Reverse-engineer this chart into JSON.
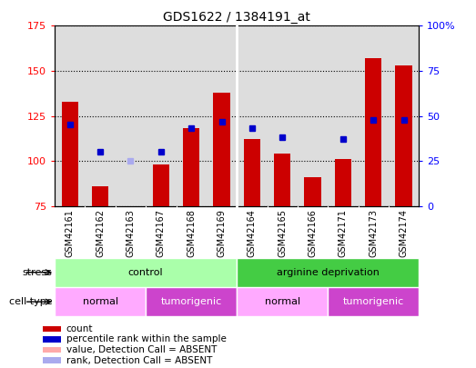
{
  "title": "GDS1622 / 1384191_at",
  "samples": [
    "GSM42161",
    "GSM42162",
    "GSM42163",
    "GSM42167",
    "GSM42168",
    "GSM42169",
    "GSM42164",
    "GSM42165",
    "GSM42166",
    "GSM42171",
    "GSM42173",
    "GSM42174"
  ],
  "count_values": [
    133,
    86,
    75,
    98,
    118,
    138,
    112,
    104,
    91,
    101,
    157,
    153
  ],
  "rank_values": [
    45,
    30,
    null,
    30,
    43,
    47,
    43,
    38,
    null,
    37,
    48,
    48
  ],
  "absent_count": [
    null,
    null,
    75,
    null,
    null,
    null,
    null,
    null,
    null,
    null,
    null,
    null
  ],
  "absent_rank": [
    null,
    null,
    25,
    null,
    null,
    null,
    null,
    null,
    null,
    null,
    null,
    null
  ],
  "ylim_left": [
    75,
    175
  ],
  "ylim_right": [
    0,
    100
  ],
  "yticks_left": [
    75,
    100,
    125,
    150,
    175
  ],
  "yticks_right": [
    0,
    25,
    50,
    75,
    100
  ],
  "yticklabels_right": [
    "0",
    "25",
    "50",
    "75",
    "100%"
  ],
  "bar_color": "#cc0000",
  "rank_color": "#0000cc",
  "absent_bar_color": "#ffaaaa",
  "absent_rank_color": "#aaaaee",
  "bar_width": 0.55,
  "stress_control_color": "#aaffaa",
  "stress_arginine_color": "#44cc44",
  "celltype_normal_color": "#ffaaff",
  "celltype_tumorigenic_color": "#cc44cc",
  "bg_color": "#dddddd",
  "fig_width": 5.23,
  "fig_height": 4.05,
  "dpi": 100
}
